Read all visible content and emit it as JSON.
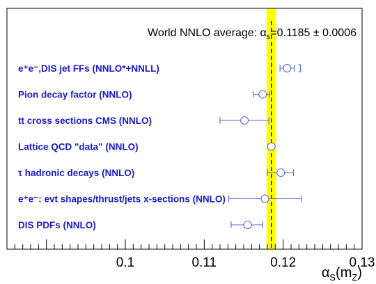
{
  "chart_data": {
    "type": "scatter",
    "title_main": "World NNLO average: ",
    "title_alpha": "α",
    "title_sub": "s",
    "title_value": "=0.1185 ± 0.0006",
    "xlabel_alpha": "α",
    "xlabel_sub": "S",
    "xlabel_rest": "(m",
    "xlabel_sub2": "Z",
    "xlabel_close": ")",
    "xlim": [
      0.085,
      0.13
    ],
    "xticks": [
      "0.1",
      "0.11",
      "0.12",
      "0.13"
    ],
    "xtick_values": [
      0.1,
      0.11,
      0.12,
      0.13
    ],
    "average": {
      "value": 0.1185,
      "band": [
        0.1179,
        0.1191
      ],
      "band_color": "#ffff00",
      "line_color": "#000000"
    },
    "series_color": "#5566dd",
    "label_color": "#1a1acc",
    "points": [
      {
        "label": "e⁺e⁻,DIS jet FFs (NNLO*+NNLL)",
        "value": 0.1205,
        "err_low": 0.1196,
        "err_high": 0.1214,
        "extra_bracket": 0.1222
      },
      {
        "label": "Pion decay factor  (NNLO)",
        "value": 0.1174,
        "err_low": 0.1162,
        "err_high": 0.1183
      },
      {
        "label": "tt cross sections CMS (NNLO)",
        "value": 0.1151,
        "err_low": 0.112,
        "err_high": 0.1182
      },
      {
        "label": "Lattice QCD \"data\"  (NNLO)",
        "value": 0.1185,
        "err_low": 0.1182,
        "err_high": 0.1188
      },
      {
        "label": "τ hadronic decays (NNLO)",
        "value": 0.1197,
        "err_low": 0.118,
        "err_high": 0.1213
      },
      {
        "label": "e⁺e⁻: evt shapes/thrust/jets x-sections (NNLO)",
        "value": 0.1177,
        "err_low": 0.1131,
        "err_high": 0.1223
      },
      {
        "label": "DIS PDFs (NNLO)",
        "value": 0.1155,
        "err_low": 0.1134,
        "err_high": 0.1174
      }
    ]
  }
}
